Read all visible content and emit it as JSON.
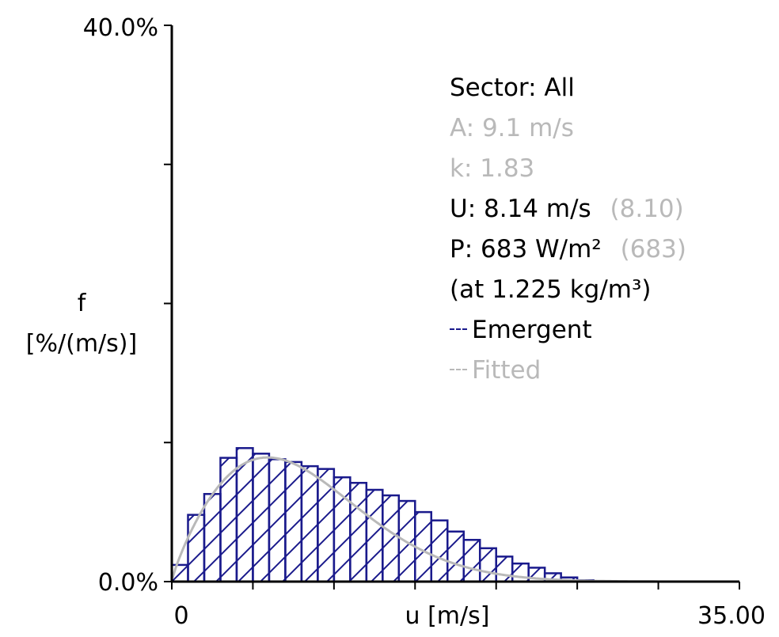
{
  "chart_data": {
    "type": "bar",
    "title": "",
    "xlabel": "u [m/s]",
    "ylabel_line1": "f",
    "ylabel_line2": "[%/(m/s)]",
    "xlim": [
      0,
      35
    ],
    "ylim": [
      0,
      40
    ],
    "x_tick_labels": [
      "0",
      "35.00"
    ],
    "y_tick_labels": [
      "0.0%",
      "40.0%"
    ],
    "x_ticks": [
      0,
      5,
      10,
      15,
      20,
      25,
      30,
      35
    ],
    "y_ticks": [
      0,
      10,
      20,
      30,
      40
    ],
    "bin_width": 1,
    "bins_start": [
      0,
      1,
      2,
      3,
      4,
      5,
      6,
      7,
      8,
      9,
      10,
      11,
      12,
      13,
      14,
      15,
      16,
      17,
      18,
      19,
      20,
      21,
      22,
      23,
      24,
      25,
      26,
      27,
      28,
      29,
      30,
      31,
      32,
      33,
      34
    ],
    "series": [
      {
        "name": "Emergent",
        "kind": "histogram",
        "color": "#1a1a8c",
        "values": [
          1.2,
          4.8,
          6.3,
          8.9,
          9.6,
          9.2,
          8.8,
          8.6,
          8.3,
          8.1,
          7.5,
          7.1,
          6.6,
          6.2,
          5.8,
          5.0,
          4.4,
          3.6,
          3.0,
          2.4,
          1.8,
          1.3,
          1.0,
          0.6,
          0.3,
          0.1,
          0,
          0,
          0,
          0,
          0,
          0,
          0,
          0,
          0
        ]
      },
      {
        "name": "Fitted",
        "kind": "weibull_curve",
        "color": "#b9b9b9",
        "A": 9.1,
        "k": 1.83
      }
    ],
    "grid": false,
    "legend_placement": "top-right"
  },
  "legend": {
    "sector": "Sector: All",
    "A": "A: 9.1 m/s",
    "k": "k: 1.83",
    "U": "U: 8.14 m/s",
    "U_fit": "(8.10)",
    "P": "P: 683 W/m²",
    "P_fit": "(683)",
    "density": "(at 1.225 kg/m³)",
    "emergent": "Emergent",
    "fitted": "Fitted"
  },
  "colors": {
    "emergent": "#1a1a8c",
    "fitted": "#b9b9b9",
    "axis": "#000000"
  }
}
